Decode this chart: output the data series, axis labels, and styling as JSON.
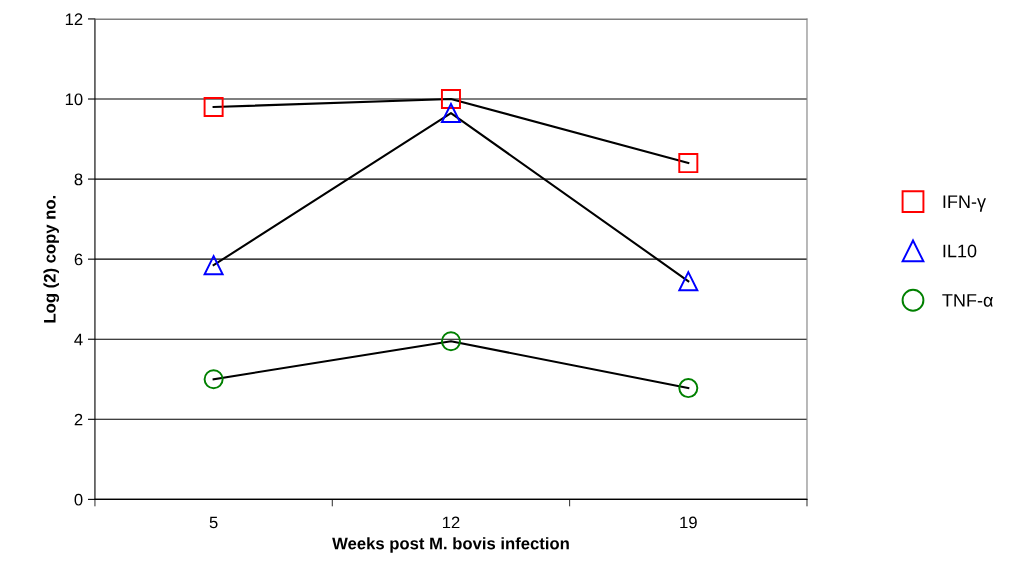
{
  "chart_data": {
    "type": "line",
    "xlabel": "Weeks post M. bovis infection",
    "ylabel": "Log (2) copy no.",
    "categories": [
      "5",
      "12",
      "19"
    ],
    "series": [
      {
        "name": "IFN-γ",
        "color": "#ff0000",
        "marker": "square",
        "values": [
          9.8,
          10.0,
          8.4
        ]
      },
      {
        "name": "IL10",
        "color": "#0000ff",
        "marker": "triangle",
        "values": [
          5.85,
          9.65,
          5.45
        ]
      },
      {
        "name": "TNF-α",
        "color": "#008000",
        "marker": "circle",
        "values": [
          3.0,
          3.95,
          2.78
        ]
      }
    ],
    "ylim": [
      0,
      12
    ],
    "yticks": [
      0,
      2,
      4,
      6,
      8,
      10,
      12
    ],
    "grid": "y",
    "legend": "right",
    "line_style": "solid"
  }
}
